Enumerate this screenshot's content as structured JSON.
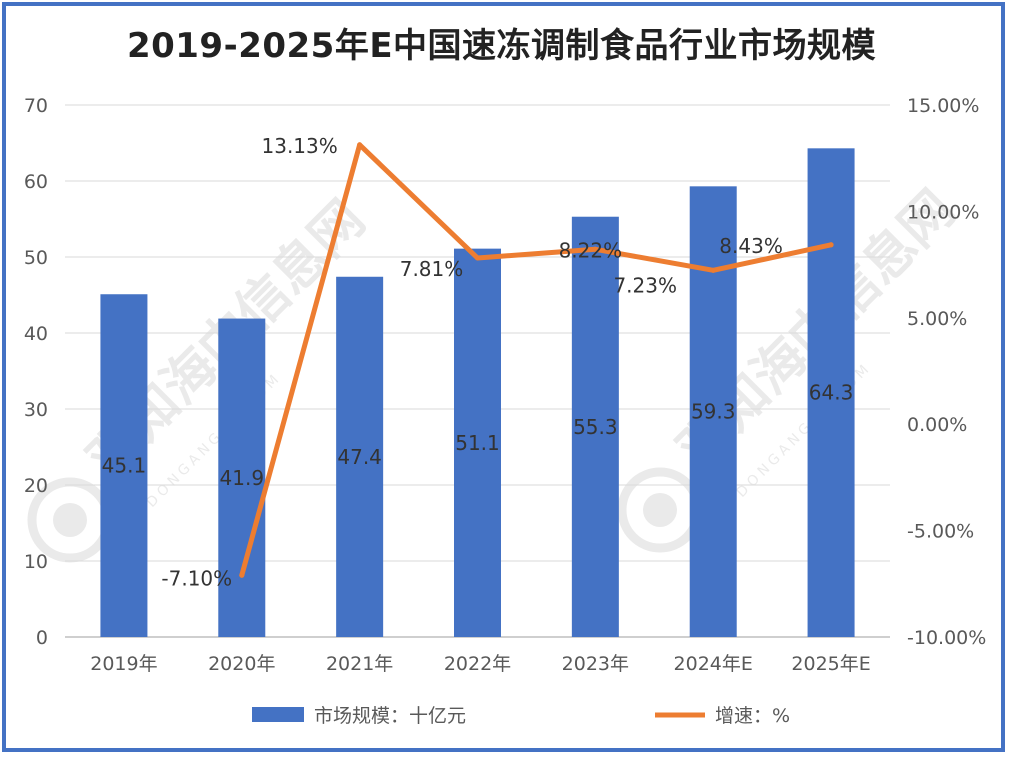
{
  "chart_data": {
    "type": "bar+line",
    "title": "2019-2025年E中国速冻调制食品行业市场规模",
    "categories": [
      "2019年",
      "2020年",
      "2021年",
      "2022年",
      "2023年",
      "2024年E",
      "2025年E"
    ],
    "series": [
      {
        "name": "市场规模：十亿元",
        "type": "bar",
        "axis": "left",
        "color": "#4472c4",
        "values": [
          45.1,
          41.9,
          47.4,
          51.1,
          55.3,
          59.3,
          64.3
        ],
        "labels": [
          "45.1",
          "41.9",
          "47.4",
          "51.1",
          "55.3",
          "59.3",
          "64.3"
        ]
      },
      {
        "name": "增速：%",
        "type": "line",
        "axis": "right",
        "color": "#ed7d31",
        "values": [
          null,
          -7.1,
          13.13,
          7.81,
          8.22,
          7.23,
          8.43
        ],
        "labels": [
          "",
          "-7.10%",
          "13.13%",
          "7.81%",
          "8.22%",
          "7.23%",
          "8.43%"
        ]
      }
    ],
    "y_left": {
      "min": 0,
      "max": 70,
      "ticks": [
        "0",
        "10",
        "20",
        "30",
        "40",
        "50",
        "60",
        "70"
      ]
    },
    "y_right": {
      "min": -10,
      "max": 15,
      "ticks": [
        "-10.00%",
        "-5.00%",
        "0.00%",
        "5.00%",
        "10.00%",
        "15.00%"
      ]
    },
    "grid": true,
    "legend": "bottom"
  },
  "watermark": {
    "text": "观知海内信息网",
    "url": "DONGANGQB.COM"
  }
}
